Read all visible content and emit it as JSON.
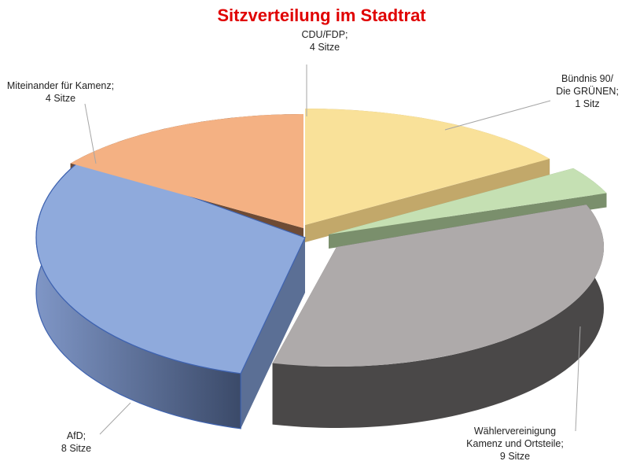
{
  "chart_data": {
    "type": "pie",
    "title": "Sitzverteilung im Stadtrat",
    "unit": "Sitze",
    "slices": [
      {
        "name": "CDU/FDP",
        "label_lines": [
          "CDU/FDP;",
          "4 Sitze"
        ],
        "value": 4,
        "color": "#f9e199",
        "side_color": "#c2a86a"
      },
      {
        "name": "Bündnis 90/ Die GRÜNEN",
        "label_lines": [
          "Bündnis 90/",
          "Die GRÜNEN;",
          "1 Sitz"
        ],
        "value": 1,
        "color": "#c5e0b3",
        "side_color": "#7a8f6c"
      },
      {
        "name": "Wählervereinigung Kamenz und Ortsteile",
        "label_lines": [
          "Wählervereinigung",
          "Kamenz und Ortsteile;",
          "9 Sitze"
        ],
        "value": 9,
        "color": "#aeaaaa",
        "side_color": "#4a4848"
      },
      {
        "name": "AfD",
        "label_lines": [
          "AfD;",
          "8 Sitze"
        ],
        "value": 8,
        "color": "#8faadc",
        "side_color": "#5b6f95"
      },
      {
        "name": "Miteinander für Kamenz",
        "label_lines": [
          "Miteinander für Kamenz;",
          "4 Sitze"
        ],
        "value": 4,
        "color": "#f4b183",
        "side_color": "#6e4b35"
      }
    ]
  }
}
